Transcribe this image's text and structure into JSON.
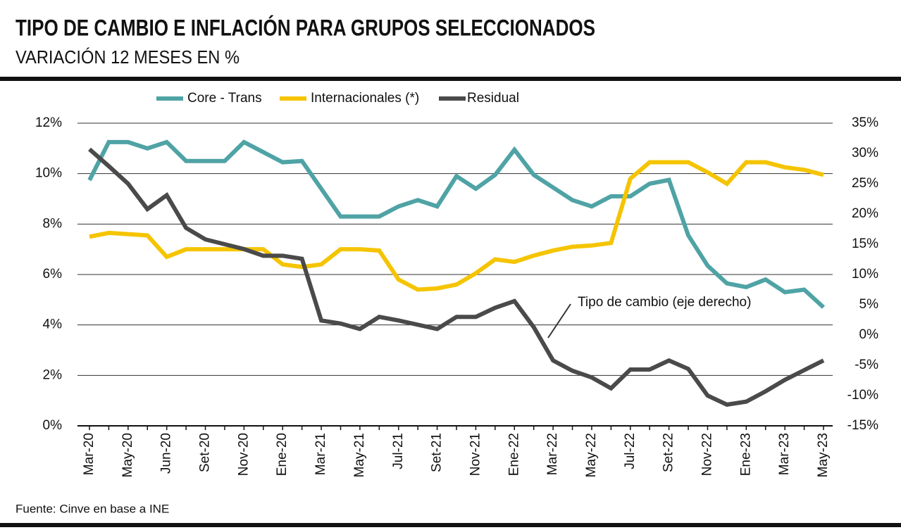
{
  "chart_data": {
    "type": "line",
    "title": "TIPO DE CAMBIO E INFLACIÓN PARA GRUPOS SELECCIONADOS",
    "subtitle": "VARIACIÓN 12 MESES EN %",
    "source": "Fuente: Cinve en base a INE",
    "annotation": "Tipo de cambio (eje derecho)",
    "legend": "top",
    "grid": true,
    "categories": [
      "Mar-20",
      null,
      "May-20",
      null,
      "Jun-20",
      null,
      "Set-20",
      null,
      "Nov-20",
      null,
      "Ene-20",
      null,
      "Mar-21",
      null,
      "May-21",
      null,
      "Jul-21",
      null,
      "Set-21",
      null,
      "Nov-21",
      null,
      "Ene-22",
      null,
      "Mar-22",
      null,
      "May-22",
      null,
      "Jul-22",
      null,
      "Set-22",
      null,
      "Nov-22",
      null,
      "Ene-23",
      null,
      "Mar-23",
      null,
      "May-23"
    ],
    "ylim": [
      0,
      12
    ],
    "yticks": [
      {
        "value": 0,
        "label": "0%"
      },
      {
        "value": 2,
        "label": "2%"
      },
      {
        "value": 4,
        "label": "4%"
      },
      {
        "value": 6,
        "label": "6%"
      },
      {
        "value": 8,
        "label": "8%"
      },
      {
        "value": 10,
        "label": "10%"
      },
      {
        "value": 12,
        "label": "12%"
      }
    ],
    "y2lim": [
      -15,
      35
    ],
    "y2ticks": [
      {
        "value": -15,
        "label": "-15%"
      },
      {
        "value": -10,
        "label": "-10%"
      },
      {
        "value": -5,
        "label": "-5%"
      },
      {
        "value": 0,
        "label": "0%"
      },
      {
        "value": 5,
        "label": "5%"
      },
      {
        "value": 10,
        "label": "10%"
      },
      {
        "value": 15,
        "label": "15%"
      },
      {
        "value": 20,
        "label": "20%"
      },
      {
        "value": 25,
        "label": "25%"
      },
      {
        "value": 30,
        "label": "30%"
      },
      {
        "value": 35,
        "label": "35%"
      }
    ],
    "series": [
      {
        "name": "Core - Trans",
        "color": "#4fa3a5",
        "values": [
          9.74,
          11.25,
          11.25,
          11.0,
          11.25,
          10.5,
          10.5,
          10.5,
          11.25,
          10.85,
          10.45,
          10.5,
          9.4,
          8.3,
          8.3,
          8.3,
          8.7,
          8.95,
          8.7,
          9.9,
          9.4,
          9.95,
          10.95,
          9.95,
          9.45,
          8.95,
          8.7,
          9.1,
          9.1,
          9.6,
          9.75,
          7.55,
          6.35,
          5.65,
          5.5,
          5.8,
          5.3,
          5.4,
          4.7
        ]
      },
      {
        "name": "Internacionales (*)",
        "color": "#f5c400",
        "values": [
          7.5,
          7.65,
          7.6,
          7.55,
          6.7,
          7.0,
          7.0,
          7.0,
          7.0,
          7.0,
          6.4,
          6.3,
          6.4,
          7.0,
          7.0,
          6.95,
          5.8,
          5.4,
          5.45,
          5.6,
          6.05,
          6.6,
          6.5,
          6.75,
          6.95,
          7.1,
          7.15,
          7.25,
          9.8,
          10.45,
          10.45,
          10.45,
          10.05,
          9.6,
          10.45,
          10.45,
          10.25,
          10.15,
          9.95
        ]
      },
      {
        "name": "Residual",
        "color": "#4a4a4a",
        "axis": "y2",
        "values": [
          30.7,
          27.9,
          25.0,
          20.8,
          23.1,
          17.7,
          15.8,
          15.0,
          14.2,
          13.1,
          13.1,
          12.6,
          2.4,
          1.9,
          1.0,
          3.0,
          2.4,
          1.7,
          1.0,
          3.0,
          3.0,
          4.5,
          5.6,
          1.3,
          -4.2,
          -5.9,
          -7.0,
          -8.8,
          -5.7,
          -5.7,
          -4.2,
          -5.6,
          -10.0,
          -11.5,
          -11.0,
          -9.3,
          -7.4,
          -5.8,
          -4.2
        ]
      }
    ]
  }
}
